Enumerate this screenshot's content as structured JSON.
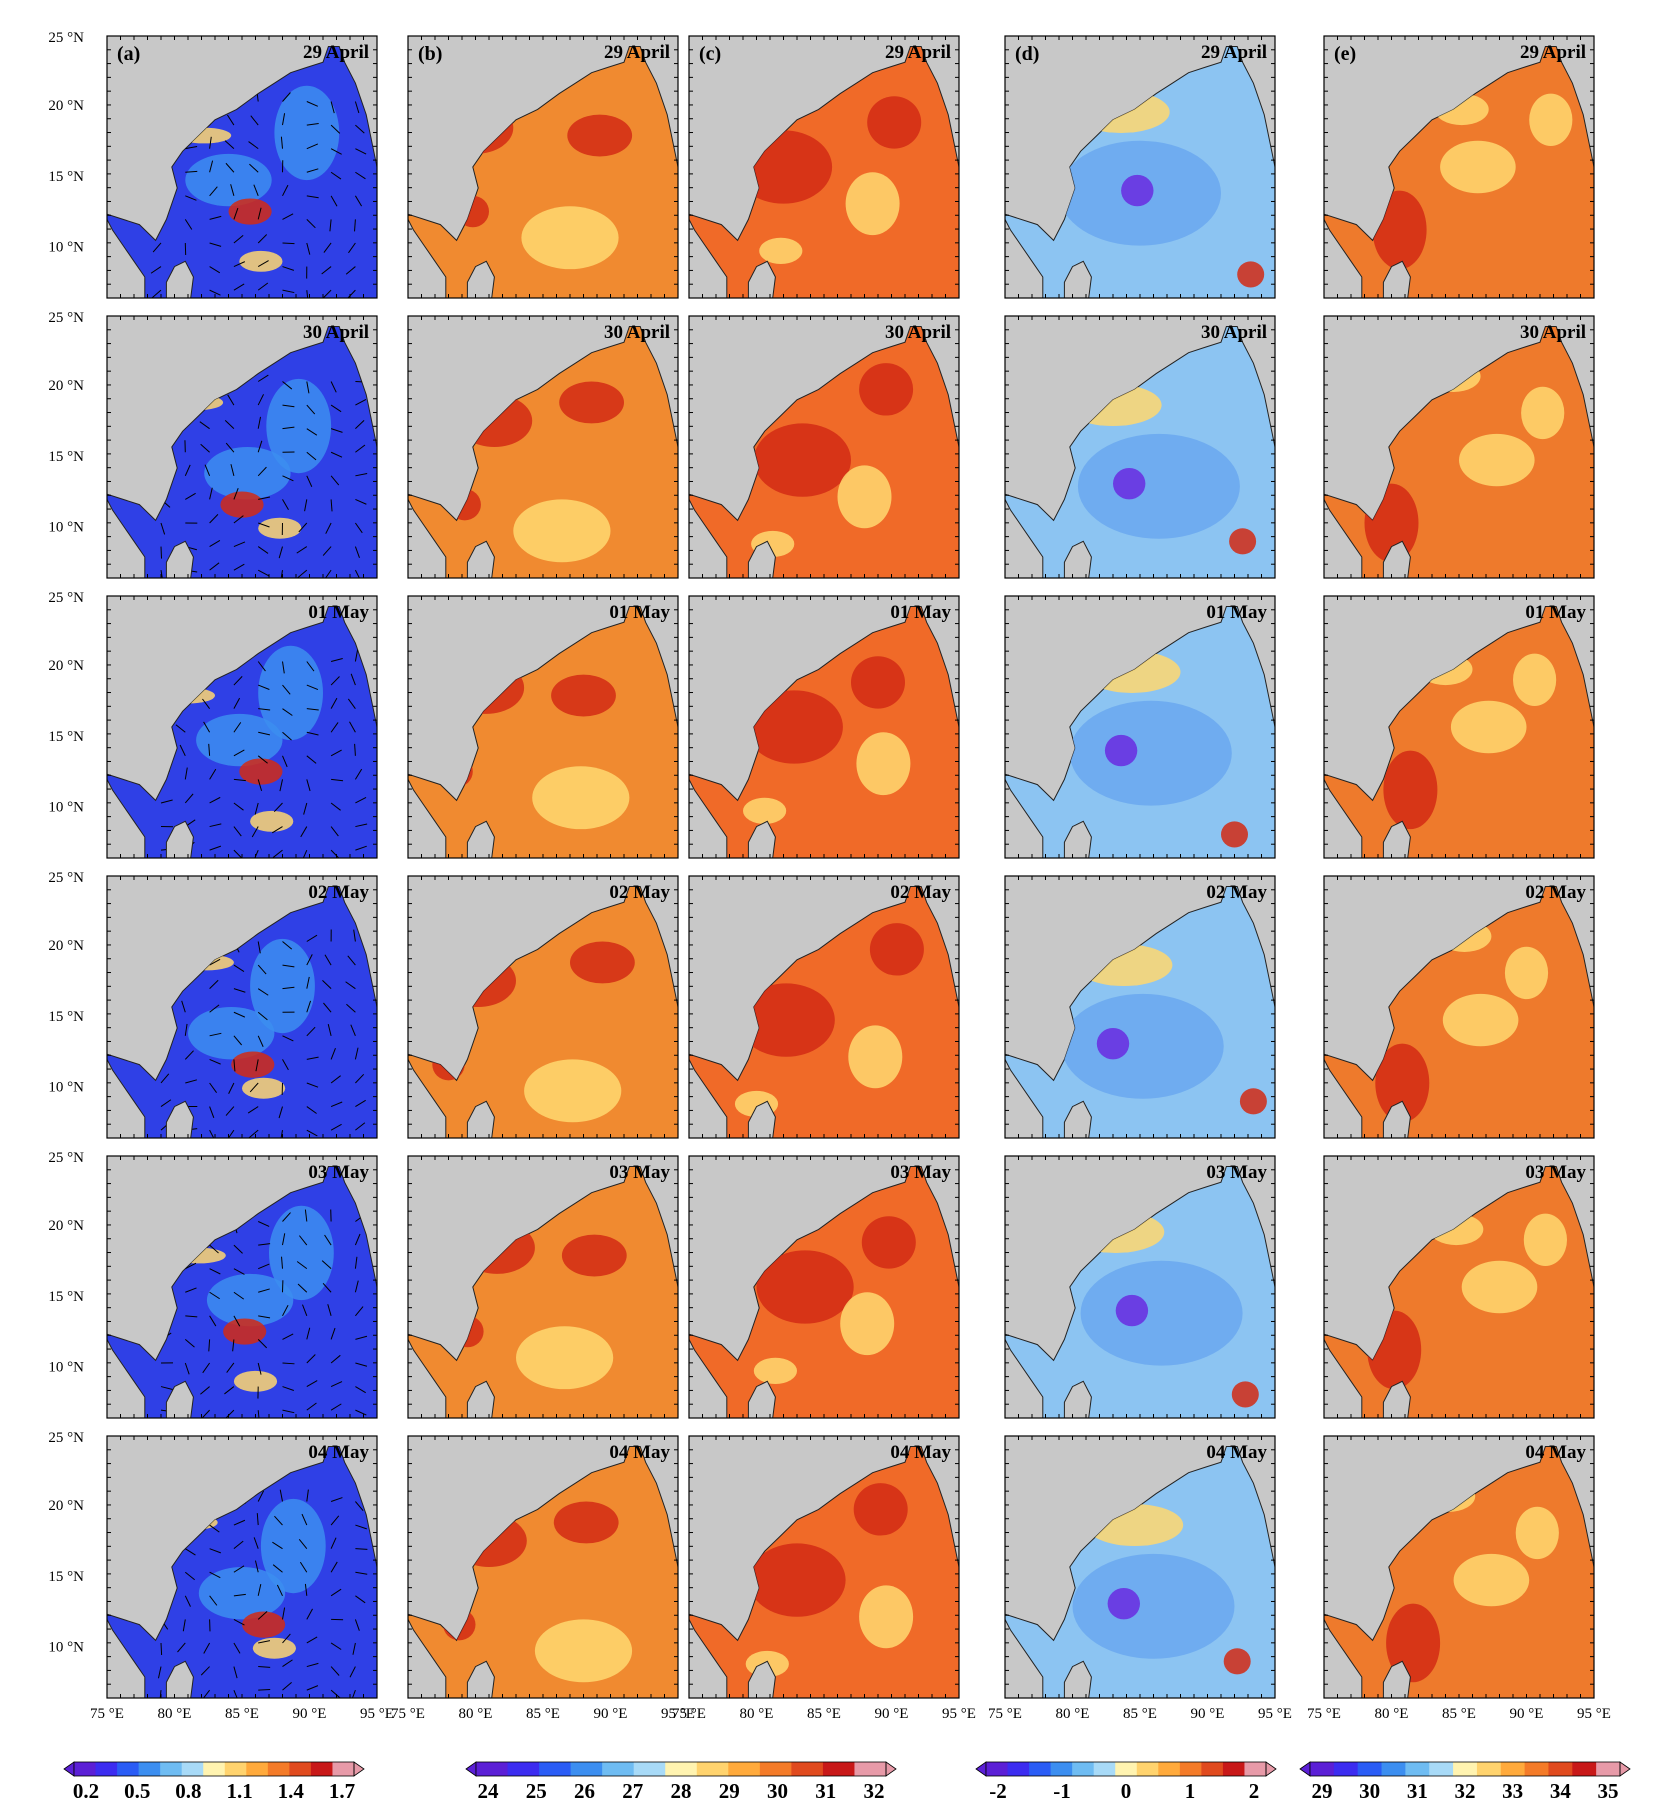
{
  "panels": [
    "(a)",
    "(b)",
    "(c)",
    "(d)",
    "(e)"
  ],
  "dates": [
    "29 April",
    "30 April",
    "01 May",
    "02 May",
    "03 May",
    "04 May"
  ],
  "lat_labels": [
    "25 °N",
    "20 °N",
    "15 °N",
    "10 °N"
  ],
  "lon_labels": [
    [
      "75 °E",
      "80 °E",
      "85 °E",
      "90 °E",
      "95 °E"
    ],
    [
      "75 °E",
      "80 °E",
      "85 °E",
      "90 °E",
      "95 °E"
    ],
    [
      "75 °E",
      "80 °E",
      "85 °E",
      "90 °E",
      "95 °E"
    ],
    [
      "75 °E",
      "80 °E",
      "85 °E",
      "90 °E",
      "95 °E"
    ],
    [
      "75 °E",
      "80 °E",
      "85 °E",
      "90 °E",
      "95 °E"
    ]
  ],
  "colorbars": [
    {
      "labels": [
        "0.2",
        "0.5",
        "0.8",
        "1.1",
        "1.4",
        "1.7"
      ],
      "colors": [
        "#5b1fd6",
        "#3c2cf0",
        "#2a5cf5",
        "#3c8ef0",
        "#6fbcf2",
        "#a8daf7",
        "#fff3b0",
        "#ffd36e",
        "#ffaa3c",
        "#f47b28",
        "#e04a1e",
        "#c81818",
        "#e79aa8"
      ]
    },
    {
      "labels": [
        "24",
        "25",
        "26",
        "27",
        "28",
        "29",
        "30",
        "31",
        "32"
      ],
      "colors": [
        "#5b1fd6",
        "#3c2cf0",
        "#2a5cf5",
        "#3c8ef0",
        "#6fbcf2",
        "#a8daf7",
        "#fff3b0",
        "#ffd36e",
        "#ffaa3c",
        "#f47b28",
        "#e04a1e",
        "#c81818",
        "#e79aa8"
      ]
    },
    {
      "labels": [
        "-2",
        "-1",
        "0",
        "1",
        "2"
      ],
      "colors": [
        "#5b1fd6",
        "#3c2cf0",
        "#2a5cf5",
        "#3c8ef0",
        "#6fbcf2",
        "#a8daf7",
        "#fff3b0",
        "#ffd36e",
        "#ffaa3c",
        "#f47b28",
        "#e04a1e",
        "#c81818",
        "#e79aa8"
      ]
    },
    {
      "labels": [
        "29",
        "30",
        "31",
        "32",
        "33",
        "34",
        "35"
      ],
      "colors": [
        "#5b1fd6",
        "#3c2cf0",
        "#2a5cf5",
        "#3c8ef0",
        "#6fbcf2",
        "#a8daf7",
        "#fff3b0",
        "#ffd36e",
        "#ffaa3c",
        "#f47b28",
        "#e04a1e",
        "#c81818",
        "#e79aa8"
      ]
    }
  ],
  "colors": {
    "land": "#c8c8c8",
    "a_ocean": "#2f40e6",
    "a_mid": "#3c8ef0",
    "b_ocean": "#f08a30",
    "c_ocean": "#f06a28",
    "d_ocean": "#8cc4f2",
    "e_ocean": "#ee7a2c",
    "hot": "#d22a14",
    "warm": "#ffd870",
    "cool": "#6aa8f0",
    "deep": "#6a2ae0"
  }
}
